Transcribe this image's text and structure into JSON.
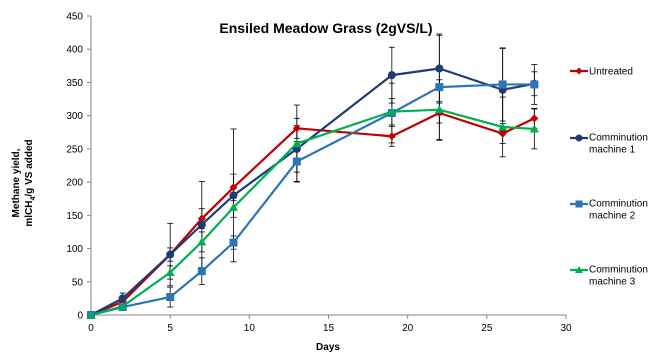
{
  "chart_data": {
    "type": "line",
    "title": "Ensiled Meadow Grass (2gVS/L)",
    "xlabel": "Days",
    "ylabel_line1": "Methane yield,",
    "ylabel_line2_pre": "mlCH",
    "ylabel_line2_sub": "4",
    "ylabel_line2_post": "/g VS added",
    "xlim": [
      0,
      30
    ],
    "ylim": [
      0,
      450
    ],
    "xticks": [
      0,
      5,
      10,
      15,
      20,
      25,
      30
    ],
    "yticks": [
      0,
      50,
      100,
      150,
      200,
      250,
      300,
      350,
      400,
      450
    ],
    "grid": false,
    "legend_position": "right",
    "series": [
      {
        "name": "Untreated",
        "color": "#c00000",
        "marker": "diamond",
        "x": [
          0,
          2,
          5,
          7,
          9,
          13,
          19,
          22,
          26,
          28
        ],
        "y": [
          0,
          20,
          91,
          145,
          192,
          281,
          269,
          304,
          273,
          296
        ],
        "err": [
          0,
          5,
          10,
          15,
          20,
          15,
          15,
          15,
          15,
          15
        ]
      },
      {
        "name": "Comminution machine 1",
        "color": "#1f3b73",
        "marker": "circle",
        "x": [
          0,
          2,
          5,
          7,
          9,
          13,
          19,
          22,
          26,
          28
        ],
        "y": [
          0,
          25,
          91,
          136,
          180,
          250,
          361,
          371,
          339,
          348
        ],
        "err": [
          0,
          8,
          47,
          65,
          100,
          35,
          42,
          50,
          62,
          18
        ]
      },
      {
        "name": "Comminution machine 2",
        "color": "#2e75b6",
        "marker": "square",
        "x": [
          0,
          2,
          5,
          7,
          9,
          13,
          19,
          22,
          26,
          28
        ],
        "y": [
          0,
          12,
          27,
          66,
          109,
          231,
          304,
          343,
          347,
          347
        ],
        "err": [
          0,
          5,
          15,
          20,
          10,
          30,
          45,
          80,
          55,
          30
        ]
      },
      {
        "name": "Comminution machine 3",
        "color": "#00b050",
        "marker": "triangle",
        "x": [
          0,
          2,
          5,
          7,
          9,
          13,
          19,
          22,
          26,
          28
        ],
        "y": [
          0,
          13,
          64,
          110,
          162,
          258,
          306,
          309,
          283,
          280
        ],
        "err": [
          0,
          5,
          10,
          15,
          15,
          58,
          20,
          45,
          45,
          30
        ]
      }
    ],
    "legend_lines": [
      [
        "Untreated"
      ],
      [
        "Comminution",
        "machine 1"
      ],
      [
        "Comminution",
        "machine 2"
      ],
      [
        "Comminution",
        "machine 3"
      ]
    ]
  }
}
